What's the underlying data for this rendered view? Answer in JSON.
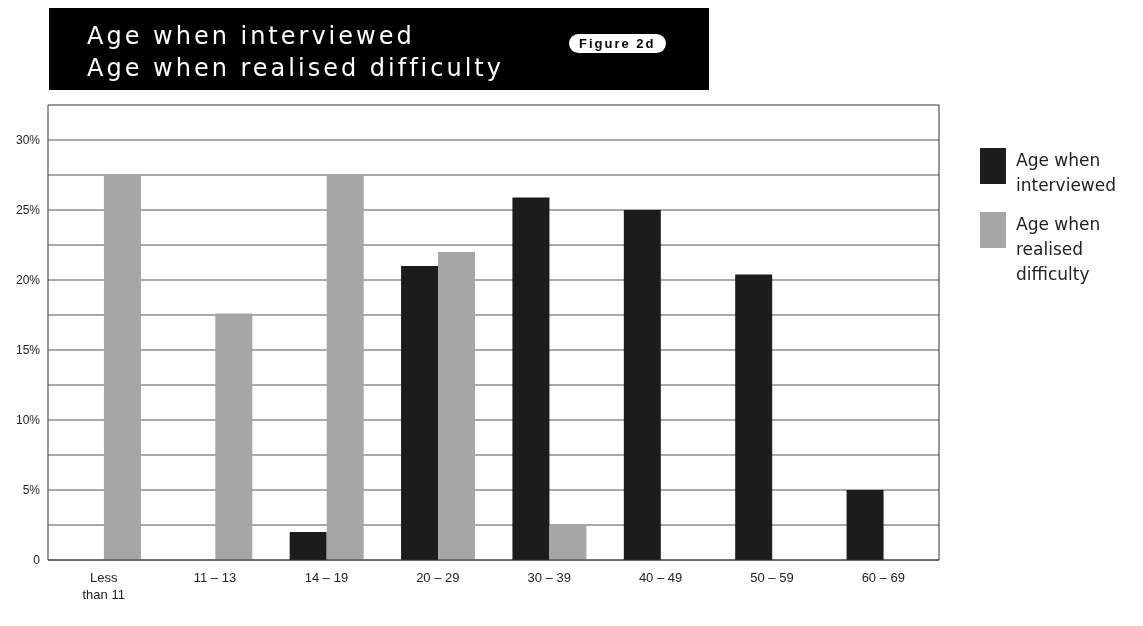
{
  "chart_data": {
    "type": "bar",
    "title": "Age when interviewed\nAge when realised difficulty",
    "annotations": [
      "Figure 2d"
    ],
    "categories": [
      "Less than 11",
      "11 – 13",
      "14 – 19",
      "20 – 29",
      "30 – 39",
      "40 – 49",
      "50 – 59",
      "60 – 69"
    ],
    "series": [
      {
        "name": "Age when interviewed",
        "color": "#1c1c1c",
        "values": [
          0,
          0,
          2,
          21,
          25.9,
          25,
          20.4,
          5
        ]
      },
      {
        "name": "Age when realised difficulty",
        "color": "#a6a6a6",
        "values": [
          27.5,
          17.6,
          27.5,
          22,
          2.5,
          0,
          0,
          0
        ]
      }
    ],
    "ylim": [
      0,
      32.5
    ],
    "yticks": [
      {
        "value": 0,
        "label": "0"
      },
      {
        "value": 2.5,
        "label": null
      },
      {
        "value": 5,
        "label": "5%"
      },
      {
        "value": 7.5,
        "label": null
      },
      {
        "value": 10,
        "label": "10%"
      },
      {
        "value": 12.5,
        "label": null
      },
      {
        "value": 15,
        "label": "15%"
      },
      {
        "value": 17.5,
        "label": null
      },
      {
        "value": 20,
        "label": "20%"
      },
      {
        "value": 22.5,
        "label": null
      },
      {
        "value": 25,
        "label": "25%"
      },
      {
        "value": 27.5,
        "label": null
      },
      {
        "value": 30,
        "label": "30%"
      }
    ],
    "grid": "y",
    "legend": "right"
  }
}
